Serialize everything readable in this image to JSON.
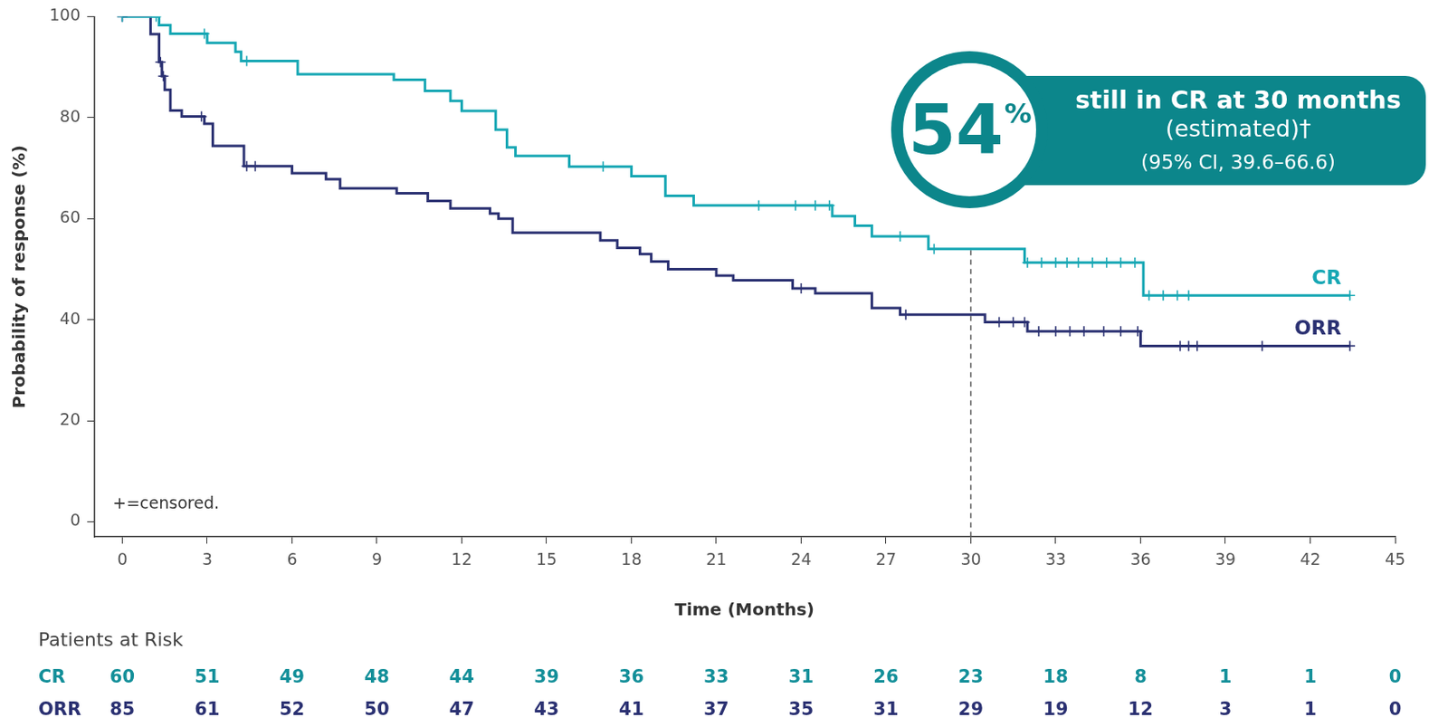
{
  "chart_data": {
    "type": "line",
    "y_label": "Probability of response (%)",
    "x_label": "Time (Months)",
    "xlim": [
      -1,
      45
    ],
    "ylim": [
      -3,
      100
    ],
    "xticks": [
      0,
      3,
      6,
      9,
      12,
      15,
      18,
      21,
      24,
      27,
      30,
      33,
      36,
      39,
      42,
      45
    ],
    "yticks": [
      0,
      20,
      40,
      60,
      80,
      100
    ],
    "grid": false,
    "series": [
      {
        "name": "CR",
        "color": "#17a7b4",
        "line_style": "step",
        "marker": "+",
        "x": [
          0,
          1.3,
          1.7,
          3.0,
          4.0,
          4.2,
          6.2,
          9.6,
          10.7,
          11.6,
          12.0,
          13.2,
          13.6,
          13.9,
          15.8,
          18.0,
          19.2,
          20.2,
          25.1,
          25.9,
          26.5,
          28.5,
          31.9,
          36.1,
          43.4
        ],
        "values": [
          100,
          98.3,
          96.6,
          94.8,
          93.0,
          91.2,
          88.6,
          87.5,
          85.3,
          83.3,
          81.3,
          77.6,
          74.1,
          72.4,
          70.3,
          68.4,
          64.5,
          62.6,
          60.5,
          58.6,
          56.5,
          54.0,
          51.3,
          44.8,
          44.8
        ],
        "censored": {
          "x": [
            0,
            1.2,
            2.9,
            4.4,
            17.0,
            22.5,
            23.8,
            24.5,
            25.0,
            27.5,
            28.7,
            32.0,
            32.5,
            33.0,
            33.4,
            33.8,
            34.3,
            34.8,
            35.3,
            35.8,
            36.3,
            36.8,
            37.3,
            37.7,
            43.4
          ],
          "values": [
            100,
            100,
            96.6,
            91.2,
            70.3,
            62.6,
            62.6,
            62.6,
            62.6,
            56.5,
            54.0,
            51.3,
            51.3,
            51.3,
            51.3,
            51.3,
            51.3,
            51.3,
            51.3,
            51.3,
            44.8,
            44.8,
            44.8,
            44.8,
            44.8
          ]
        }
      },
      {
        "name": "ORR",
        "color": "#2b3172",
        "line_style": "step",
        "marker": "+",
        "x": [
          0,
          1.0,
          1.3,
          1.4,
          1.5,
          1.7,
          2.1,
          2.9,
          3.2,
          4.3,
          6.0,
          7.2,
          7.7,
          9.7,
          10.8,
          11.6,
          13.0,
          13.3,
          13.8,
          16.9,
          17.5,
          18.3,
          18.7,
          19.3,
          21.0,
          21.6,
          23.7,
          24.5,
          26.5,
          27.5,
          30.5,
          32.0,
          36.0,
          43.4
        ],
        "values": [
          100,
          96.5,
          91.0,
          88.2,
          85.5,
          81.4,
          80.2,
          78.8,
          74.4,
          70.4,
          69.0,
          67.8,
          66.0,
          65.0,
          63.5,
          62.0,
          61.0,
          60.0,
          57.2,
          55.7,
          54.2,
          53.0,
          51.5,
          50.0,
          48.7,
          47.8,
          46.2,
          45.2,
          42.3,
          41.0,
          39.5,
          37.7,
          34.8,
          34.8
        ],
        "censored": {
          "x": [
            0,
            1.35,
            1.45,
            2.8,
            4.4,
            4.7,
            24.0,
            27.7,
            31.0,
            31.5,
            31.9,
            32.4,
            33.0,
            33.5,
            34.0,
            34.7,
            35.3,
            35.9,
            37.4,
            37.7,
            38.0,
            40.3,
            43.4
          ],
          "values": [
            100,
            91.0,
            88.2,
            80.2,
            70.4,
            70.4,
            46.2,
            41.0,
            39.5,
            39.5,
            39.5,
            37.7,
            37.7,
            37.7,
            37.7,
            37.7,
            37.7,
            37.7,
            34.8,
            34.8,
            34.8,
            34.8,
            34.8
          ]
        }
      }
    ],
    "reference_line": {
      "x": 30,
      "line_style": "dashed"
    },
    "annotation": {
      "value": 54,
      "label": "54%",
      "lines": [
        "still in CR at 30 months",
        "(estimated)†",
        "(95% CI, 39.6–66.6)"
      ]
    },
    "note": "+=censored.",
    "at_risk": {
      "title": "Patients at Risk",
      "x": [
        0,
        3,
        6,
        9,
        12,
        15,
        18,
        21,
        24,
        27,
        30,
        33,
        36,
        39,
        42,
        45
      ],
      "rows": [
        {
          "name": "CR",
          "color": "#138f99",
          "values": [
            60,
            51,
            49,
            48,
            44,
            39,
            36,
            33,
            31,
            26,
            23,
            18,
            8,
            1,
            1,
            0
          ]
        },
        {
          "name": "ORR",
          "color": "#2b3172",
          "values": [
            85,
            61,
            52,
            50,
            47,
            43,
            41,
            37,
            35,
            31,
            29,
            19,
            12,
            3,
            1,
            0
          ]
        }
      ]
    }
  }
}
